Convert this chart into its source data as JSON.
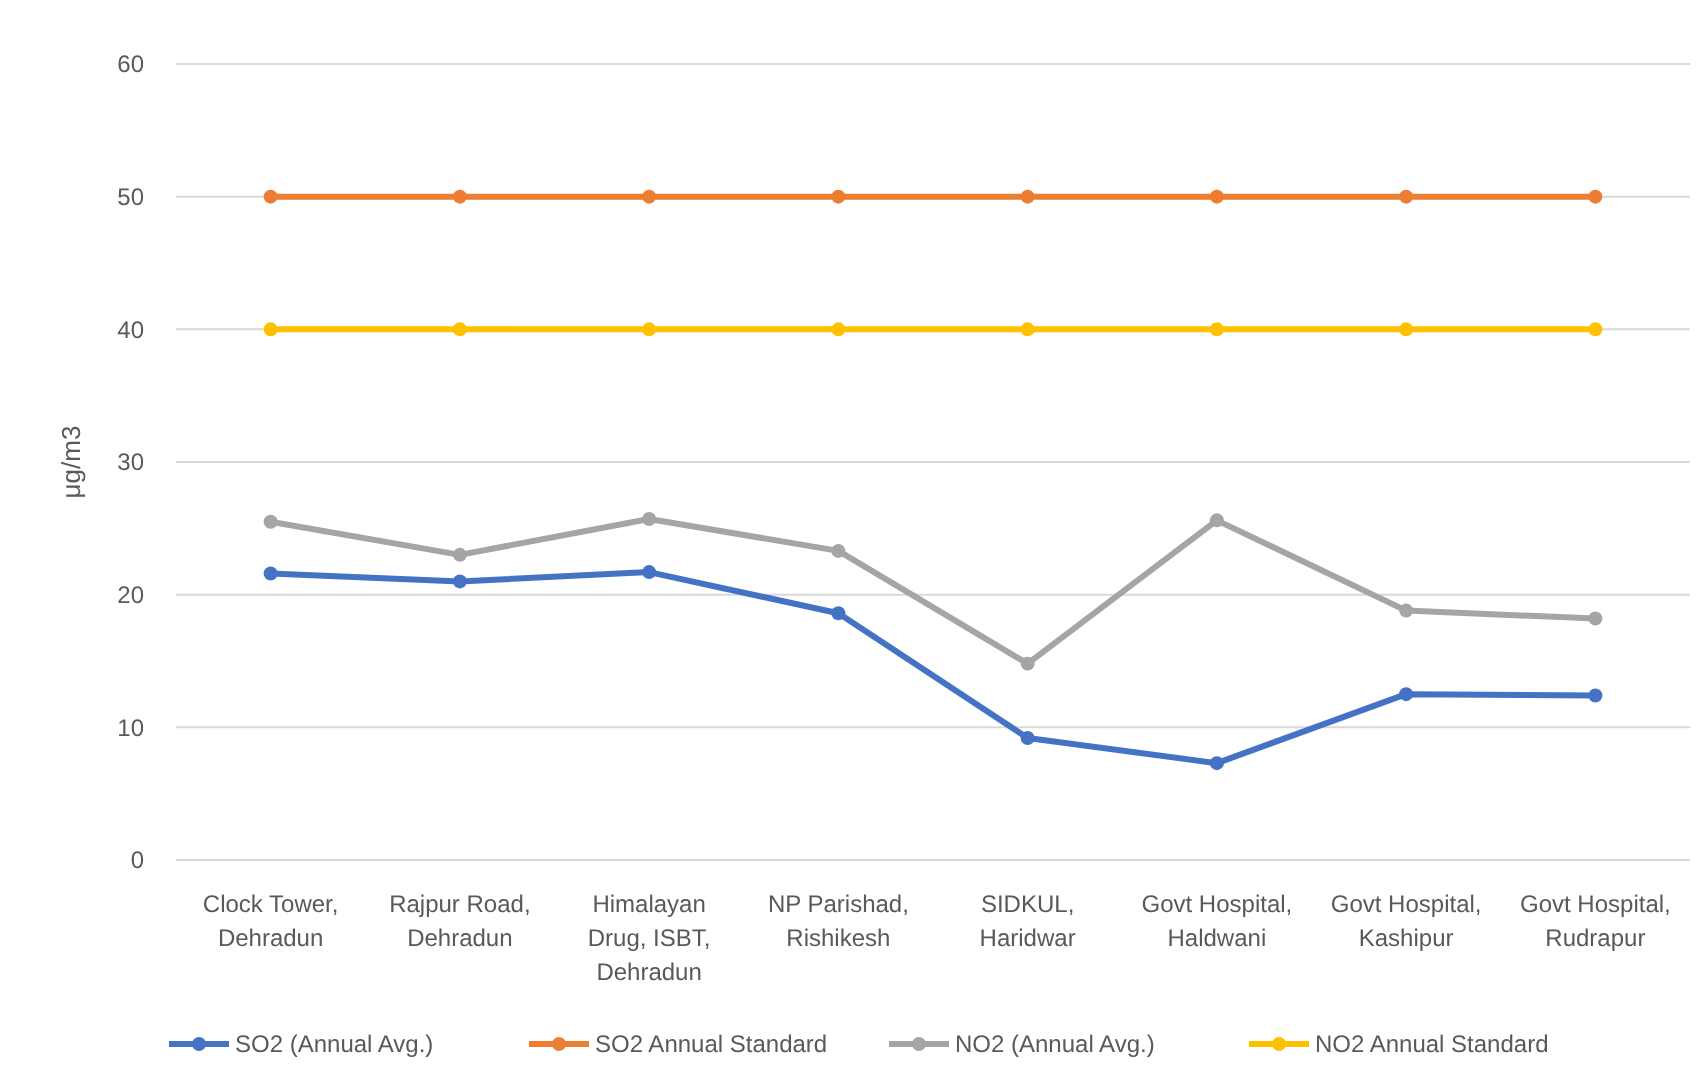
{
  "chart_data": {
    "type": "line",
    "ylabel": "μg/m3",
    "categories": [
      "Clock Tower, Dehradun",
      "Rajpur Road, Dehradun",
      "Himalayan Drug, ISBT, Dehradun",
      "NP Parishad, Rishikesh",
      "SIDKUL, Haridwar",
      "Govt Hospital, Haldwani",
      "Govt Hospital, Kashipur",
      "Govt Hospital, Rudrapur"
    ],
    "series": [
      {
        "name": "SO2 (Annual Avg.)",
        "color": "#4472c4",
        "values": [
          21.6,
          21.0,
          21.7,
          18.6,
          9.2,
          7.3,
          12.5,
          12.4
        ]
      },
      {
        "name": "SO2 Annual Standard",
        "color": "#ed7d31",
        "values": [
          50,
          50,
          50,
          50,
          50,
          50,
          50,
          50
        ]
      },
      {
        "name": "NO2 (Annual Avg.)",
        "color": "#a5a5a5",
        "values": [
          25.5,
          23.0,
          25.7,
          23.3,
          14.8,
          25.6,
          18.8,
          18.2
        ]
      },
      {
        "name": "NO2 Annual Standard",
        "color": "#ffc000",
        "values": [
          40,
          40,
          40,
          40,
          40,
          40,
          40,
          40
        ]
      }
    ],
    "ylim": [
      0,
      60
    ],
    "yticks": [
      0,
      10,
      20,
      30,
      40,
      50,
      60
    ],
    "grid": "y",
    "legend": "bottom",
    "marker": "circle",
    "line_style": "solid"
  }
}
